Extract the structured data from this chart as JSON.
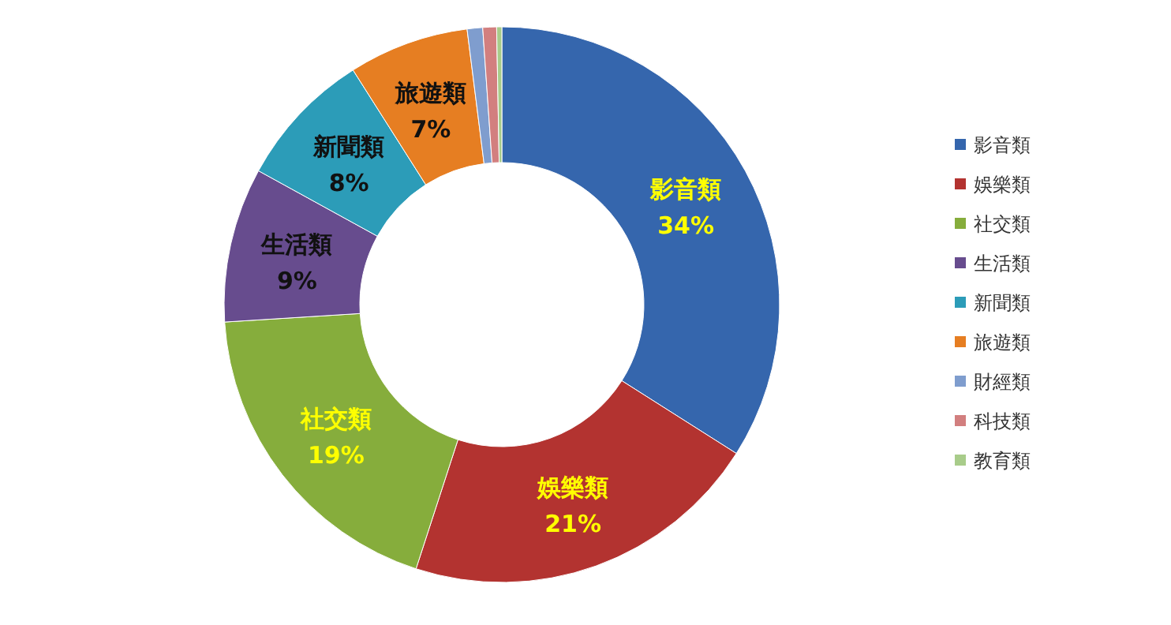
{
  "chart_data": {
    "type": "donut",
    "categories": [
      "影音類",
      "娛樂類",
      "社交類",
      "生活類",
      "新聞類",
      "旅遊類",
      "財經類",
      "科技類",
      "教育類"
    ],
    "values": [
      34,
      21,
      19,
      9,
      8,
      7,
      0.9,
      0.8,
      0.3
    ],
    "colors": [
      "#3566ad",
      "#b33330",
      "#86ad3c",
      "#674c8e",
      "#2c9cb8",
      "#e67e22",
      "#7f9dce",
      "#d27f7f",
      "#a8cc8a"
    ],
    "value_labels": [
      "34%",
      "21%",
      "19%",
      "9%",
      "8%",
      "7%",
      null,
      null,
      null
    ],
    "legend": "right"
  }
}
